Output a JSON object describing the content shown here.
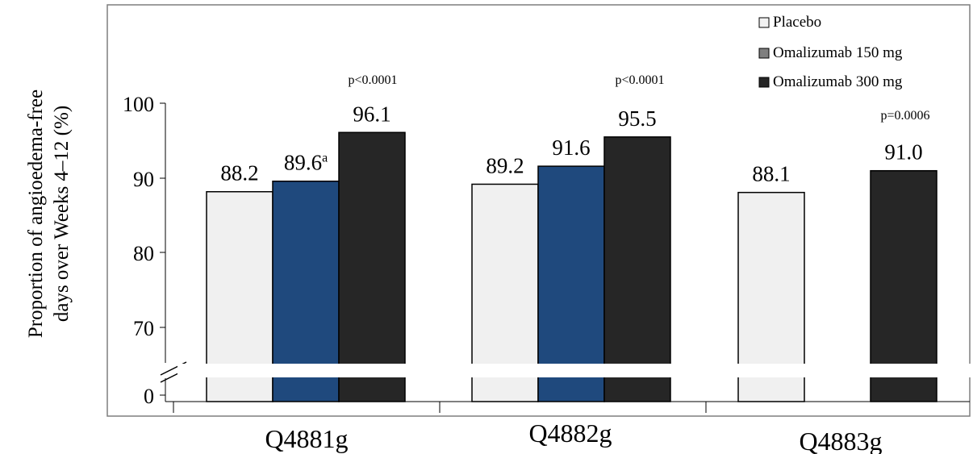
{
  "chart_data": {
    "type": "bar",
    "title": "",
    "xlabel": "",
    "ylabel_lines": [
      "Proportion of angioedema-free",
      "days over Weeks 4–12 (%)"
    ],
    "categories": [
      "Q4881g",
      "Q4882g",
      "Q4883g"
    ],
    "ylim": [
      65,
      100
    ],
    "axis_break": true,
    "yticks": [
      "0",
      "70",
      "80",
      "90",
      "100"
    ],
    "grid": false,
    "legend_position": "top-right",
    "series": [
      {
        "name": "Placebo",
        "color": "#f0f0f0",
        "legend_color": "#f2f2f2",
        "values": [
          88.2,
          89.2,
          88.1
        ],
        "labels": [
          "88.2",
          "89.2",
          "88.1"
        ],
        "label_sup": [
          "",
          "",
          ""
        ]
      },
      {
        "name": "Omalizumab 150 mg",
        "color": "#1f497d",
        "legend_color": "#7f7f7f",
        "values": [
          89.6,
          91.6,
          null
        ],
        "labels": [
          "89.6",
          "91.6",
          ""
        ],
        "label_sup": [
          "a",
          "",
          ""
        ]
      },
      {
        "name": "Omalizumab 300 mg",
        "color": "#262626",
        "legend_color": "#262626",
        "values": [
          96.1,
          95.5,
          91.0
        ],
        "labels": [
          "96.1",
          "95.5",
          "91.0"
        ],
        "label_sup": [
          "",
          "",
          ""
        ]
      }
    ],
    "p_values": [
      "p<0.0001",
      "p<0.0001",
      "p=0.0006"
    ]
  }
}
